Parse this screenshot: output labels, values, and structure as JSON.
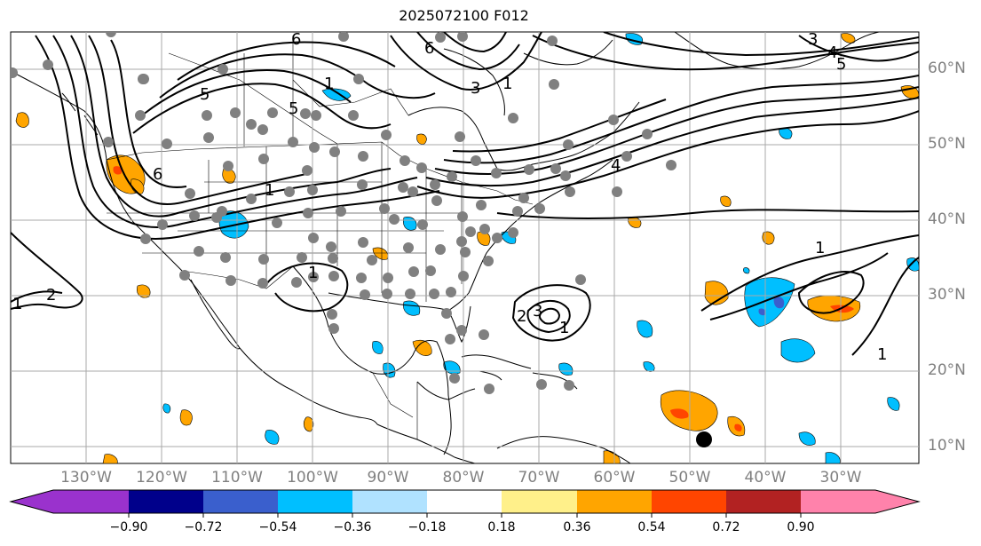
{
  "title": "2025072100 F012",
  "latitude_labels": [
    "60°N",
    "50°N",
    "40°N",
    "30°N",
    "20°N",
    "10°N"
  ],
  "longitude_labels": [
    "130°W",
    "120°W",
    "110°W",
    "100°W",
    "90°W",
    "80°W",
    "70°W",
    "60°W",
    "50°W",
    "40°W",
    "30°W"
  ],
  "colorbar": {
    "ticks": [
      "−0.90",
      "−0.72",
      "−0.54",
      "−0.36",
      "−0.18",
      "0.18",
      "0.36",
      "0.54",
      "0.72",
      "0.90"
    ],
    "colors": [
      "#9a32cd",
      "#00008b",
      "#3a5fcd",
      "#00bfff",
      "#b0e2ff",
      "#ffffff",
      "#fff08a",
      "#ffa500",
      "#ff4500",
      "#b22222",
      "#ff82ab"
    ]
  },
  "contour_labels": [
    "1",
    "2",
    "3",
    "4",
    "5",
    "6"
  ],
  "map": {
    "extent_lon": [
      -145,
      -25
    ],
    "extent_lat": [
      8,
      65
    ],
    "grid": true,
    "station_marker_color": "#808080",
    "highlight_marker_color": "#000000"
  }
}
